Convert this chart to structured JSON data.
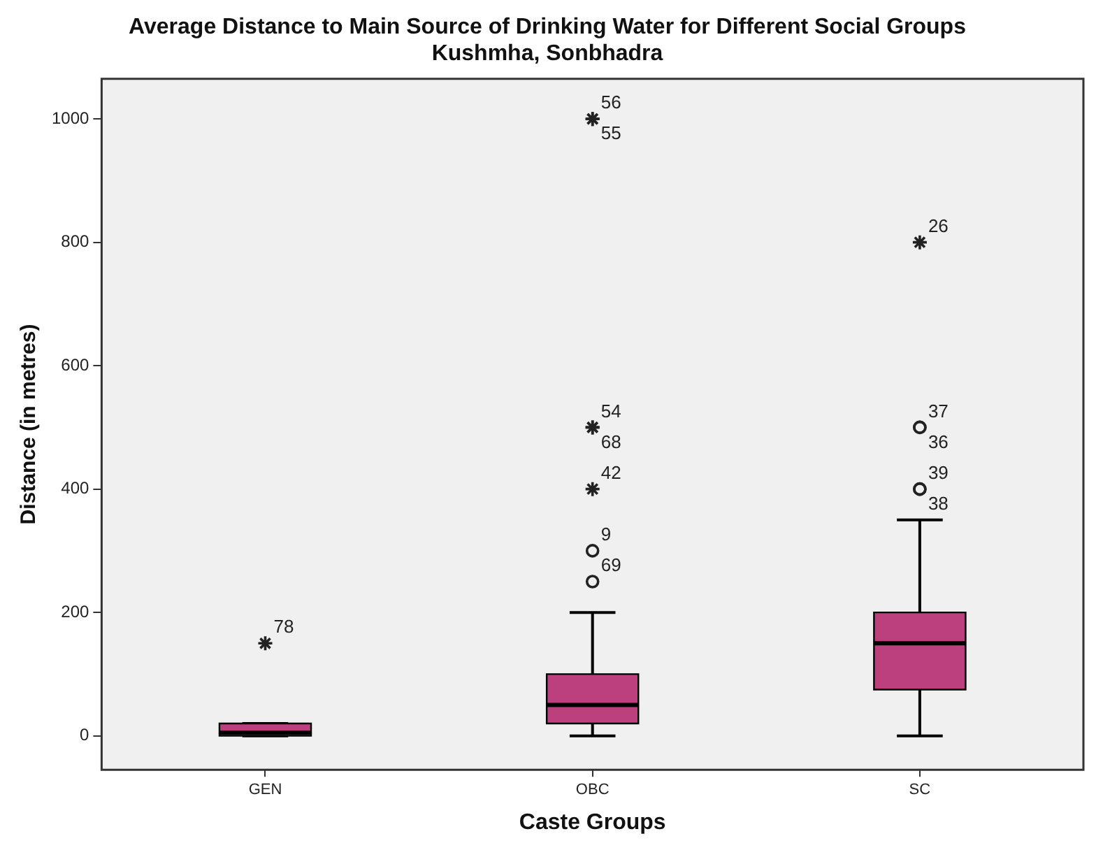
{
  "chart_data": {
    "type": "box",
    "title": "Average Distance to Main Source of Drinking Water for Different Social Groups",
    "subtitle": "Kushmha, Sonbhadra",
    "xlabel": "Caste Groups",
    "ylabel": "Distance (in metres)",
    "categories": [
      "GEN",
      "OBC",
      "SC"
    ],
    "color": "#bc3f7e",
    "boxes": [
      {
        "low": 0,
        "q1": 0,
        "median": 5,
        "q3": 20,
        "high": 20,
        "outliers": [
          150
        ]
      },
      {
        "low": 0,
        "q1": 20,
        "median": 50,
        "q3": 100,
        "high": 200,
        "outliers": [
          1000,
          1000,
          500,
          500,
          400,
          300,
          250
        ]
      },
      {
        "low": 0,
        "q1": 75,
        "median": 150,
        "q3": 200,
        "high": 350,
        "outliers": [
          800,
          500,
          500,
          400,
          400
        ]
      }
    ],
    "ylim": [
      -55,
      1065
    ],
    "yticks": [
      0,
      200,
      400,
      600,
      800,
      1000
    ],
    "grid": false,
    "legend": false,
    "annotations": [
      "78",
      "56",
      "55",
      "54",
      "68",
      "42",
      "9",
      "69",
      "26",
      "37",
      "36",
      "39",
      "38"
    ]
  }
}
